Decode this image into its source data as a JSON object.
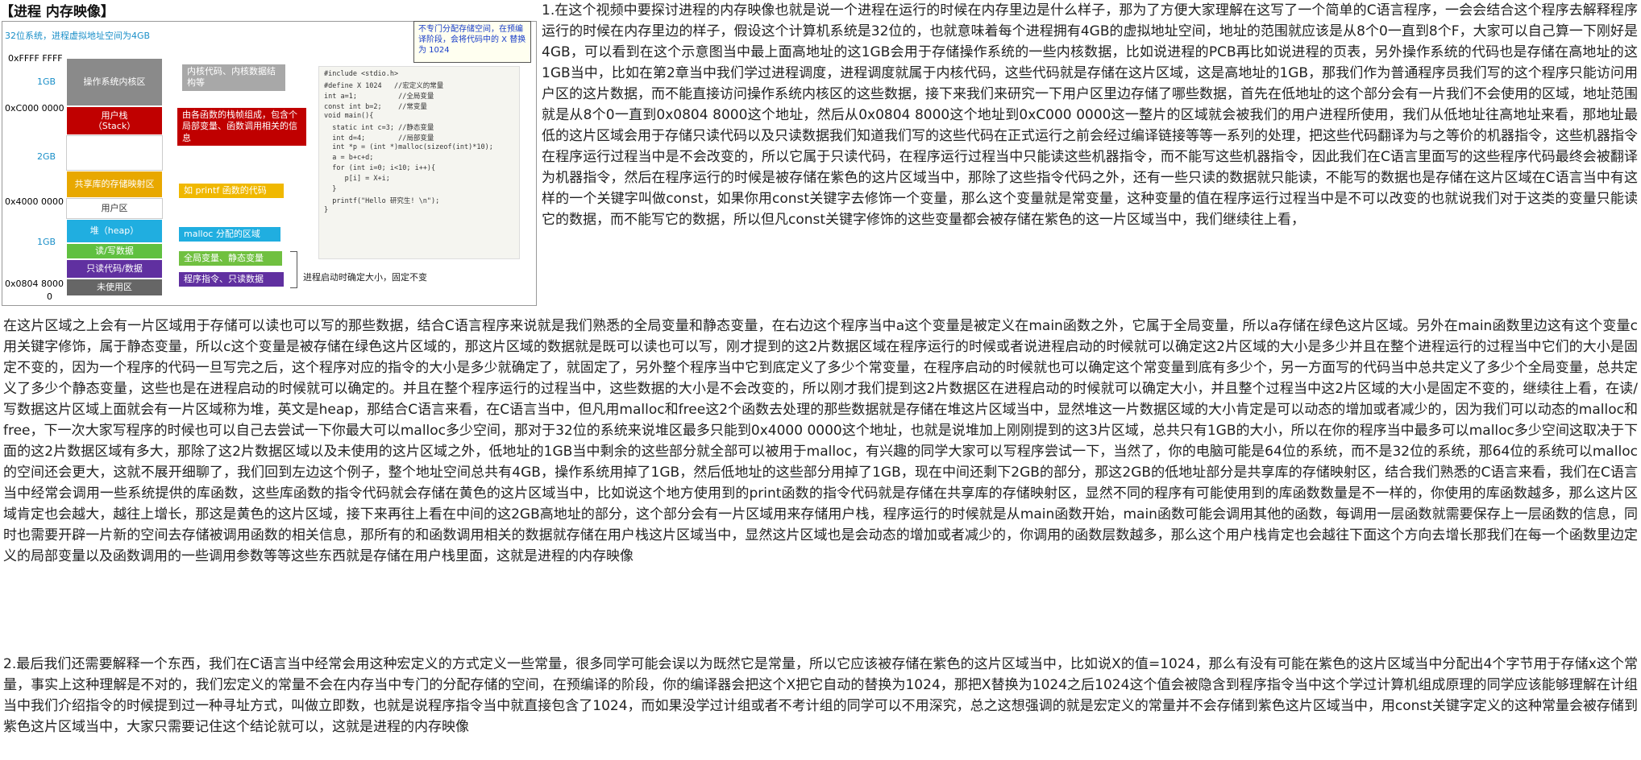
{
  "title": "【进程 内存映像】",
  "figure": {
    "caption": "32位系统，进程虚拟地址空间为4GB",
    "callout": "不专门分配存储空间，在预编译阶段，会将代码中的 X 替换为 1024",
    "segments": [
      {
        "label": "操作系统内核区",
        "color": "#8a8a8a"
      },
      {
        "label": "用户栈\n（Stack）",
        "color": "#c00000"
      },
      {
        "label": "共享库的存储映射区",
        "color": "#e8a800"
      },
      {
        "label": "堆（heap）",
        "color": "#20aee0"
      },
      {
        "label": "读/写数据",
        "color": "#60c040"
      },
      {
        "label": "只读代码/数据",
        "color": "#6030a0"
      },
      {
        "label": "未使用区",
        "color": "#666666"
      }
    ],
    "user_area_label": "用户区",
    "addresses": [
      "0xFFFF FFFF",
      "0xC000 0000",
      "0x4000 0000",
      "0x0804 8000",
      "0"
    ],
    "gb_marks": [
      "1GB",
      "2GB",
      "1GB"
    ],
    "notes": [
      {
        "text": "内核代码、内核数据结构等",
        "color": "#a8a8a8"
      },
      {
        "text": "由各函数的栈帧组成，包含个局部变量、函数调用相关的信息",
        "color": "#c00000"
      },
      {
        "text": "如 printf 函数的代码",
        "color": "#f0b800"
      },
      {
        "text": "malloc 分配的区域",
        "color": "#20aee0"
      },
      {
        "text": "全局变量、静态变量",
        "color": "#70c040"
      },
      {
        "text": "程序指令、只读数据",
        "color": "#6030a0"
      }
    ],
    "bracket_note": "进程启动时确定大小，固定不变",
    "code": [
      "#include <stdio.h>",
      "#define X 1024   //宏定义的常量",
      "int a=1;          //全局变量",
      "const int b=2;    //常变量",
      "void main(){",
      "  static int c=3; //静态变量",
      "  int d=4;        //局部变量",
      "  int *p = (int *)malloc(sizeof(int)*10);",
      "  a = b+c+d;",
      "  for (int i=0; i<10; i++){",
      "     p[i] = X+i;",
      "  }",
      "  printf(\"Hello 研究生! \\n\");",
      "}"
    ]
  },
  "paragraphs": {
    "p1_right": "1.在这个视频中要探讨进程的内存映像也就是说一个进程在运行的时候在内存里边是什么样子，那为了方便大家理解在这写了一个简单的C语言程序，一会会结合这个程序去解释程序运行的时候在内存里边的样子，假设这个计算机系统是32位的，也就意味着每个进程拥有4GB的虚拟地址空间，地址的范围就应该是从8个0一直到8个F，大家可以自己算一下刚好是4GB，可以看到在这个示意图当中最上面高地址的这1GB会用于存储操作系统的一些内核数据，比如说进程的PCB再比如说进程的页表，另外操作系统的代码也是存储在高地址的这1GB当中，比如在第2章当中我们学过进程调度，进程调度就属于内核代码，这些代码就是存储在这片区域，这是高地址的1GB，那我们作为普通程序员我们写的这个程序只能访问用户区的这片数据，而不能直接访问操作系统内核区的这些数据，接下来我们来研究一下用户区里边存储了哪些数据，首先在低地址的这个部分会有一片我们不会使用的区域，地址范围就是从8个0一直到0x0804 8000这个地址，然后从0x0804 8000这个地址到0xC000 0000这一整片的区域就会被我们的用户进程所使用，我们从低地址往高地址来看，那地址最低的这片区域会用于存储只读代码以及只读数据我们知道我们写的这些代码在正式运行之前会经过编译链接等等一系列的处理，把这些代码翻译为与之等价的机器指令，这些机器指令在程序运行过程当中是不会改变的，所以它属于只读代码，在程序运行过程当中只能读这些机器指令，而不能写这些机器指令，因此我们在C语言里面写的这些程序代码最终会被翻译为机器指令，然后在程序运行的时候是被存储在紫色的这片区域当中，那除了这些指令代码之外，还有一些只读的数据就只能读，不能写的数据也是存储在这片区域在C语言当中有这样的一个关键字叫做const，如果你用const关键字去修饰一个变量，那么这个变量就是常变量，这种变量的值在程序运行过程当中是不可以改变的也就说我们对于这类的变量只能读它的数据，而不能写它的数据，所以但凡const关键字修饰的这些变量都会被存储在紫色的这一片区域当中，我们继续往上看，",
    "p1_full": "在这片区域之上会有一片区域用于存储可以读也可以写的那些数据，结合C语言程序来说就是我们熟悉的全局变量和静态变量，在右边这个程序当中a这个变量是被定义在main函数之外，它属于全局变量，所以a存储在绿色这片区域。另外在main函数里边这有这个变量c用关键字修饰，属于静态变量，所以c这个变量是被存储在绿色这片区域的，那这片区域的数据就是既可以读也可以写，刚才提到的这2片数据区域在程序运行的时候或者说进程启动的时候就可以确定这2片区域的大小是多少并且在整个进程运行的过程当中它们的大小是固定不变的，因为一个程序的代码一旦写完之后，这个程序对应的指令的大小是多少就确定了，就固定了，另外整个程序当中它到底定义了多少个常变量，在程序启动的时候就也可以确定这个常变量到底有多少个，另一方面写的代码当中总共定义了多少个全局变量，总共定义了多少个静态变量，这些也是在进程启动的时候就可以确定的。并且在整个程序运行的过程当中，这些数据的大小是不会改变的，所以刚才我们提到这2片数据区在进程启动的时候就可以确定大小，并且整个过程当中这2片区域的大小是固定不变的，继续往上看，在读/写数据这片区域上面就会有一片区域称为堆，英文是heap，那结合C语言来看，在C语言当中，但凡用malloc和free这2个函数去处理的那些数据就是存储在堆这片区域当中，显然堆这一片数据区域的大小肯定是可以动态的增加或者减少的，因为我们可以动态的malloc和free，下一次大家写程序的时候也可以自己去尝试一下你最大可以malloc多少空间，那对于32位的系统来说堆区最多只能到0x4000 0000这个地址，也就是说堆加上刚刚提到的这3片区域，总共只有1GB的大小，所以在你的程序当中最多可以malloc多少空间这取决于下面的这2片数据区域有多大，那除了这2片数据区域以及未使用的这片区域之外，低地址的1GB当中剩余的这些部分就全部可以被用于malloc，有兴趣的同学大家可以写程序尝试一下，当然了，你的电脑可能是64位的系统，而不是32位的系统，那64位的系统可以malloc的空间还会更大，这就不展开细聊了，我们回到左边这个例子，整个地址空间总共有4GB，操作系统用掉了1GB，然后低地址的这些部分用掉了1GB，现在中间还剩下2GB的部分，那这2GB的低地址部分是共享库的存储映射区，结合我们熟悉的C语言来看，我们在C语言当中经常会调用一些系统提供的库函数，这些库函数的指令代码就会存储在黄色的这片区域当中，比如说这个地方使用到的print函数的指令代码就是存储在共享库的存储映射区，显然不同的程序有可能使用到的库函数数量是不一样的，你使用的库函数越多，那么这片区域肯定也会越大，越往上增长，那这是黄色的这片区域，接下来再往上看在中间的这2GB高地址的部分，这个部分会有一片区域用来存储用户栈，程序运行的时候就是从main函数开始，main函数可能会调用其他的函数，每调用一层函数就需要保存上一层函数的信息，同时也需要开辟一片新的空间去存储被调用函数的相关信息，那所有的和函数调用相关的数据就存储在用户栈这片区域当中，显然这片区域也是会动态的增加或者减少的，你调用的函数层数越多，那么这个用户栈肯定也会越往下面这个方向去增长那我们在每一个函数里边定义的局部变量以及函数调用的一些调用参数等等这些东西就是存储在用户栈里面，这就是进程的内存映像",
    "p2": "2.最后我们还需要解释一个东西，我们在C语言当中经常会用这种宏定义的方式定义一些常量，很多同学可能会误以为既然它是常量，所以它应该被存储在紫色的这片区域当中，比如说X的值=1024，那么有没有可能在紫色的这片区域当中分配出4个字节用于存储x这个常量，事实上这种理解是不对的，我们宏定义的常量不会在内存当中专门的分配存储的空间，在预编译的阶段，你的编译器会把这个X把它自动的替换为1024，那把X替换为1024之后1024这个值会被隐含到程序指令当中这个学过计算机组成原理的同学应该能够理解在计组当中我们介绍指令的时候提到过一种寻址方式，叫做立即数，也就是说程序指令当中就直接包含了1024，而如果没学过计组或者不考计组的同学可以不用深究，总之这想强调的就是宏定义的常量并不会存储到紫色这片区域当中，用const关键字定义的这种常量会被存储到紫色这片区域当中，大家只需要记住这个结论就可以，这就是进程的内存映像"
  }
}
